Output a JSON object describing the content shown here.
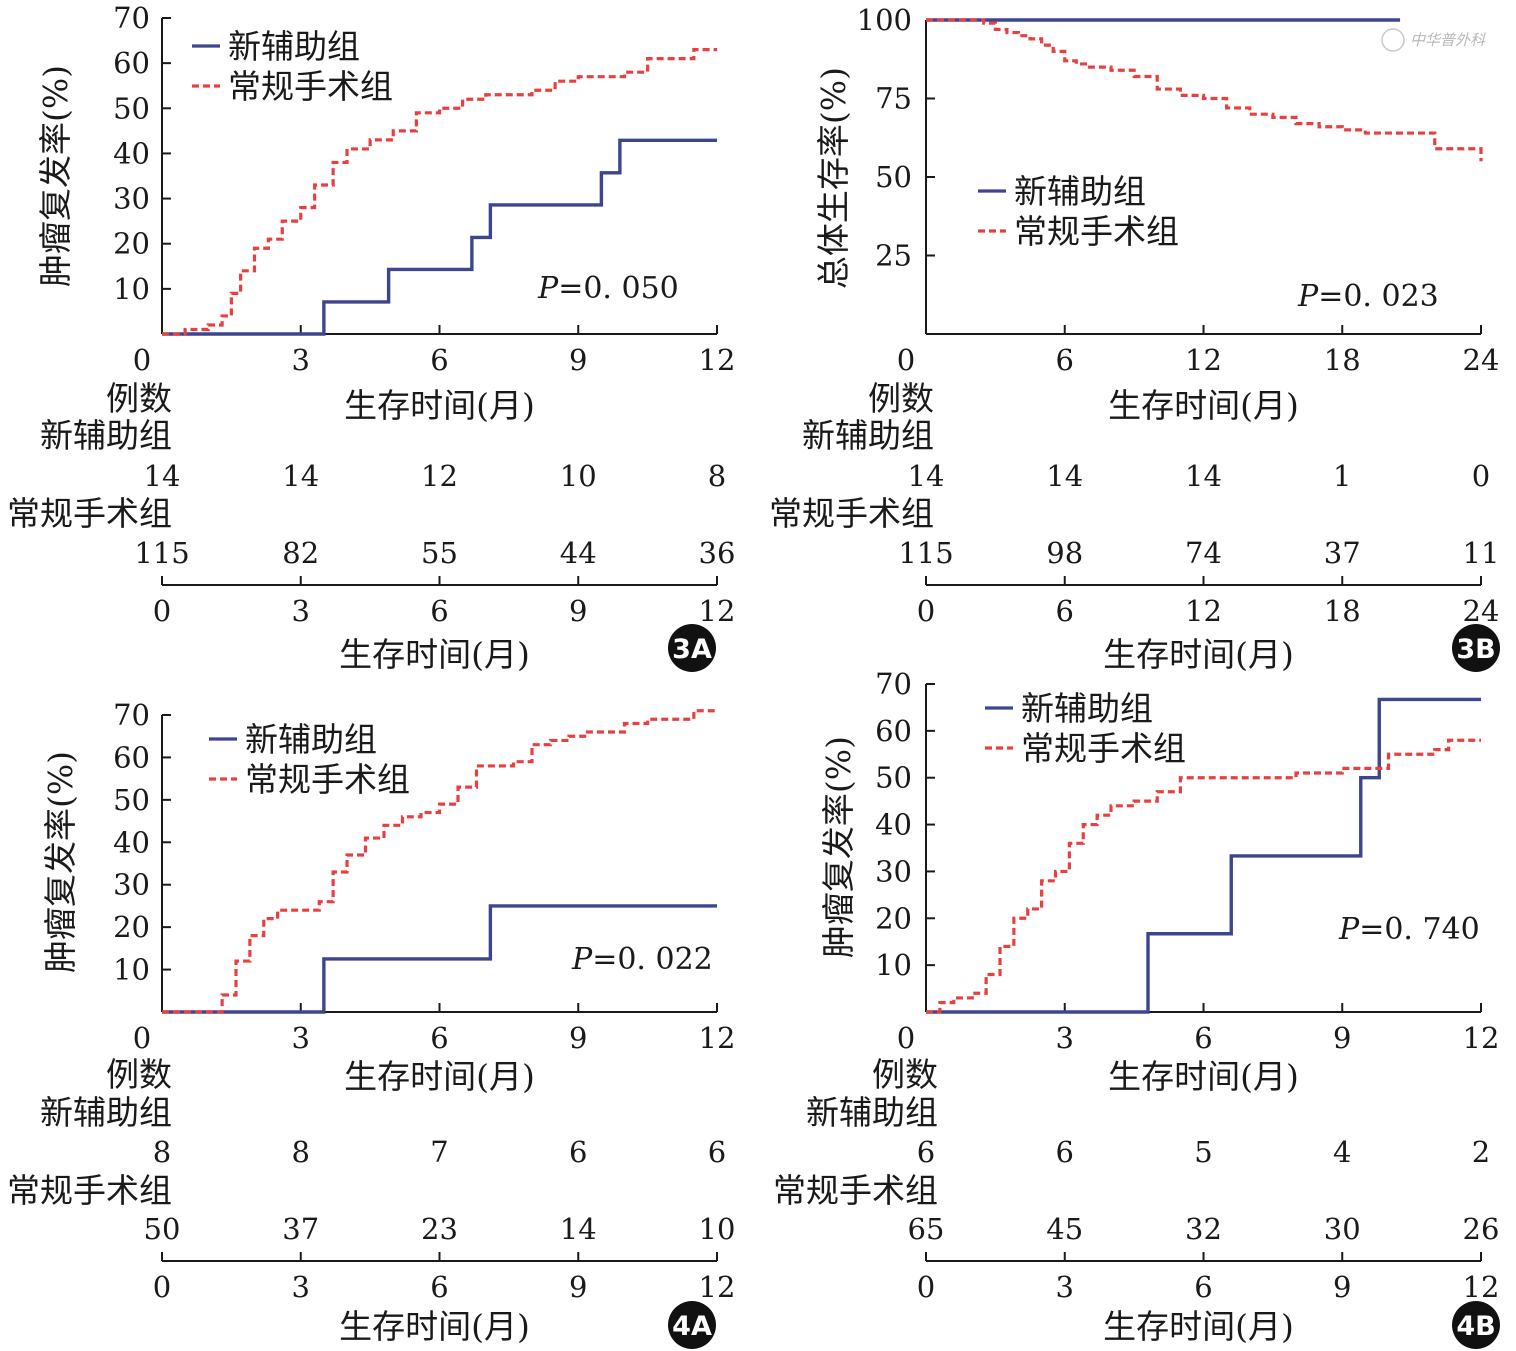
{
  "colors": {
    "neoadjuvant": "#3d4591",
    "surgery": "#e84040",
    "axis": "#1a1a1a"
  },
  "watermark": "中华普外科",
  "chart_data": [
    {
      "id": "3A",
      "type": "line",
      "step": true,
      "badge": "3A",
      "ylabel": "肿瘤复发率(%)",
      "xlabel": "生存时间(月)",
      "xlim": [
        0,
        12
      ],
      "ylim": [
        0,
        70
      ],
      "xticks": [
        0,
        3,
        6,
        9,
        12
      ],
      "yticks": [
        10,
        20,
        30,
        40,
        50,
        60,
        70
      ],
      "p_prefix": "P",
      "p_value": "=0. 050",
      "series": [
        {
          "name": "新辅助组",
          "style": "solid",
          "x": [
            0,
            3.5,
            3.5,
            4.9,
            4.9,
            6.7,
            6.7,
            7.1,
            7.1,
            9.5,
            9.5,
            9.9,
            9.9,
            12
          ],
          "y": [
            0,
            0,
            7.1,
            7.1,
            14.3,
            14.3,
            21.4,
            21.4,
            28.6,
            28.6,
            35.7,
            35.7,
            42.9,
            42.9
          ]
        },
        {
          "name": "常规手术组",
          "style": "dashed",
          "x": [
            0,
            0.5,
            1.0,
            1.3,
            1.5,
            1.7,
            2.0,
            2.3,
            2.6,
            3.0,
            3.3,
            3.7,
            4.0,
            4.5,
            5.0,
            5.5,
            6.0,
            6.5,
            7.0,
            7.5,
            8.0,
            8.5,
            9.0,
            9.5,
            10.0,
            10.5,
            11.0,
            11.5,
            12
          ],
          "y": [
            0,
            1,
            2,
            4,
            9,
            14,
            19,
            21,
            25,
            28,
            33,
            38,
            41,
            43,
            45,
            49,
            50,
            52,
            53,
            53,
            54,
            56,
            57,
            57,
            58,
            61,
            61,
            63,
            63
          ]
        }
      ],
      "risk_table": {
        "header": "例数",
        "rows": [
          {
            "label": "新辅助组",
            "counts": [
              "14",
              "14",
              "12",
              "10",
              "8"
            ]
          },
          {
            "label": "常规手术组",
            "counts": [
              "115",
              "82",
              "55",
              "44",
              "36"
            ]
          }
        ],
        "xticks": [
          0,
          3,
          6,
          9,
          12
        ],
        "xlabel": "生存时间(月)"
      }
    },
    {
      "id": "3B",
      "type": "line",
      "step": true,
      "badge": "3B",
      "ylabel": "总体生存率(%)",
      "xlabel": "生存时间(月)",
      "xlim": [
        0,
        24
      ],
      "ylim": [
        0,
        100
      ],
      "xticks": [
        0,
        6,
        12,
        18,
        24
      ],
      "yticks": [
        25,
        50,
        75,
        100
      ],
      "p_prefix": "P",
      "p_value": "=0. 023",
      "series": [
        {
          "name": "新辅助组",
          "style": "solid",
          "x": [
            0,
            20.5
          ],
          "y": [
            100,
            100
          ]
        },
        {
          "name": "常规手术组",
          "style": "dashed",
          "x": [
            0,
            1.5,
            2.5,
            3.0,
            3.5,
            4.0,
            4.5,
            5.0,
            5.5,
            6.0,
            6.5,
            7.0,
            8.0,
            9.0,
            10.0,
            11.0,
            12.0,
            13.0,
            14.0,
            15.0,
            16.0,
            17.0,
            18.0,
            19.0,
            20.0,
            21.0,
            22.0,
            23.0,
            24.0
          ],
          "y": [
            100,
            100,
            99,
            97,
            96,
            95,
            94,
            92,
            90,
            87,
            86,
            85,
            84,
            82,
            78,
            76,
            75,
            72,
            70,
            69,
            67,
            66,
            65,
            64,
            64,
            64,
            59,
            59,
            55
          ]
        }
      ],
      "risk_table": {
        "header": "例数",
        "rows": [
          {
            "label": "新辅助组",
            "counts": [
              "14",
              "14",
              "14",
              "1",
              "0"
            ]
          },
          {
            "label": "常规手术组",
            "counts": [
              "115",
              "98",
              "74",
              "37",
              "11"
            ]
          }
        ],
        "xticks": [
          0,
          6,
          12,
          18,
          24
        ],
        "xlabel": "生存时间(月)"
      }
    },
    {
      "id": "4A",
      "type": "line",
      "step": true,
      "badge": "4A",
      "ylabel": "肿瘤复发率(%)",
      "xlabel": "生存时间(月)",
      "xlim": [
        0,
        12
      ],
      "ylim": [
        0,
        70
      ],
      "xticks": [
        0,
        3,
        6,
        9,
        12
      ],
      "yticks": [
        10,
        20,
        30,
        40,
        50,
        60,
        70
      ],
      "p_prefix": "P",
      "p_value": "=0. 022",
      "series": [
        {
          "name": "新辅助组",
          "style": "solid",
          "x": [
            0,
            3.5,
            3.5,
            7.1,
            7.1,
            12
          ],
          "y": [
            0,
            0,
            12.5,
            12.5,
            25,
            25
          ]
        },
        {
          "name": "常规手术组",
          "style": "dashed",
          "x": [
            0,
            1.0,
            1.3,
            1.6,
            1.9,
            2.2,
            2.5,
            3.0,
            3.4,
            3.7,
            4.0,
            4.4,
            4.8,
            5.2,
            5.6,
            6.0,
            6.4,
            6.8,
            7.2,
            7.6,
            8.0,
            8.4,
            8.8,
            9.2,
            9.6,
            10.0,
            10.5,
            11.0,
            11.5,
            12
          ],
          "y": [
            0,
            0,
            4,
            12,
            18,
            22,
            24,
            24,
            26,
            33,
            37,
            41,
            44,
            46,
            47,
            49,
            53,
            58,
            58,
            59,
            63,
            64,
            65,
            66,
            66,
            68,
            69,
            69,
            71,
            71
          ]
        }
      ],
      "risk_table": {
        "header": "例数",
        "rows": [
          {
            "label": "新辅助组",
            "counts": [
              "8",
              "8",
              "7",
              "6",
              "6"
            ]
          },
          {
            "label": "常规手术组",
            "counts": [
              "50",
              "37",
              "23",
              "14",
              "10"
            ]
          }
        ],
        "xticks": [
          0,
          3,
          6,
          9,
          12
        ],
        "xlabel": "生存时间(月)"
      }
    },
    {
      "id": "4B",
      "type": "line",
      "step": true,
      "badge": "4B",
      "ylabel": "肿瘤复发率(%)",
      "xlabel": "生存时间(月)",
      "xlim": [
        0,
        12
      ],
      "ylim": [
        0,
        70
      ],
      "xticks": [
        0,
        3,
        6,
        9,
        12
      ],
      "yticks": [
        10,
        20,
        30,
        40,
        50,
        60,
        70
      ],
      "p_prefix": "P",
      "p_value": "=0. 740",
      "series": [
        {
          "name": "新辅助组",
          "style": "solid",
          "x": [
            0,
            4.8,
            4.8,
            6.6,
            6.6,
            9.4,
            9.4,
            9.8,
            9.8,
            12
          ],
          "y": [
            0,
            0,
            16.7,
            16.7,
            33.3,
            33.3,
            50,
            50,
            66.7,
            66.7
          ]
        },
        {
          "name": "常规手术组",
          "style": "dashed",
          "x": [
            0,
            0.3,
            0.6,
            1.0,
            1.3,
            1.6,
            1.9,
            2.2,
            2.5,
            2.8,
            3.1,
            3.4,
            3.7,
            4.0,
            4.5,
            5.0,
            5.5,
            6.0,
            7.0,
            8.0,
            8.5,
            9.0,
            9.5,
            10.0,
            11.0,
            11.3,
            12
          ],
          "y": [
            0,
            2,
            3,
            4,
            8,
            14,
            20,
            22,
            28,
            30,
            36,
            40,
            42,
            44,
            45,
            47,
            50,
            50,
            50,
            51,
            51,
            52,
            52,
            55,
            56,
            58,
            58
          ]
        }
      ],
      "risk_table": {
        "header": "例数",
        "rows": [
          {
            "label": "新辅助组",
            "counts": [
              "6",
              "6",
              "5",
              "4",
              "2"
            ]
          },
          {
            "label": "常规手术组",
            "counts": [
              "65",
              "45",
              "32",
              "30",
              "26"
            ]
          }
        ],
        "xticks": [
          0,
          3,
          6,
          9,
          12
        ],
        "xlabel": "生存时间(月)"
      }
    }
  ]
}
